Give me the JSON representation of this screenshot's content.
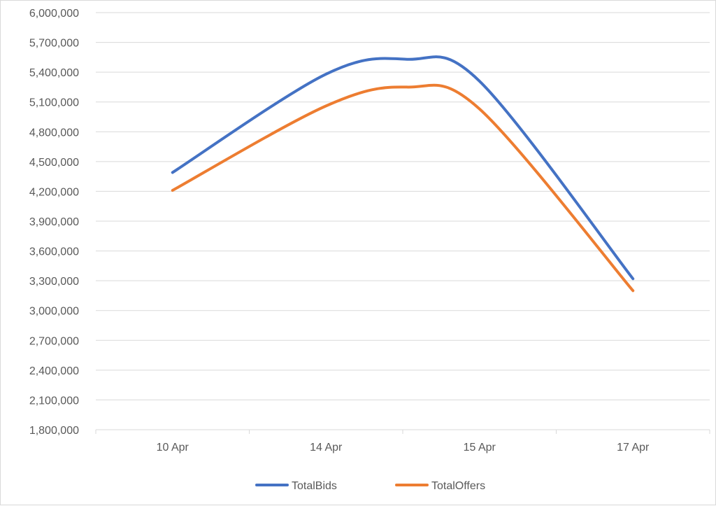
{
  "chart_data": {
    "type": "line",
    "categories": [
      "10 Apr",
      "14 Apr",
      "15 Apr",
      "17 Apr"
    ],
    "series": [
      {
        "name": "TotalBids",
        "color": "#4472C4",
        "points": [
          {
            "x": "10 Apr",
            "y": 4390000
          },
          {
            "x": "14 Apr",
            "y": 5380000
          },
          {
            "x": "14 Apr–15 Apr",
            "y": 5530000
          },
          {
            "x": "15 Apr",
            "y": 5310000
          },
          {
            "x": "17 Apr",
            "y": 3320000
          }
        ]
      },
      {
        "name": "TotalOffers",
        "color": "#ED7D31",
        "points": [
          {
            "x": "10 Apr",
            "y": 4210000
          },
          {
            "x": "14 Apr",
            "y": 5060000
          },
          {
            "x": "14 Apr–15 Apr",
            "y": 5250000
          },
          {
            "x": "15 Apr",
            "y": 5030000
          },
          {
            "x": "17 Apr",
            "y": 3200000
          }
        ]
      }
    ],
    "y_axis": {
      "min": 1800000,
      "max": 6000000,
      "step": 300000,
      "tick_labels": [
        "1,800,000",
        "2,100,000",
        "2,400,000",
        "2,700,000",
        "3,000,000",
        "3,300,000",
        "3,600,000",
        "3,900,000",
        "4,200,000",
        "4,500,000",
        "4,800,000",
        "5,100,000",
        "5,400,000",
        "5,700,000",
        "6,000,000"
      ]
    },
    "title": "",
    "xlabel": "",
    "ylabel": "",
    "grid": true,
    "legend": "bottom",
    "smooth": true
  }
}
